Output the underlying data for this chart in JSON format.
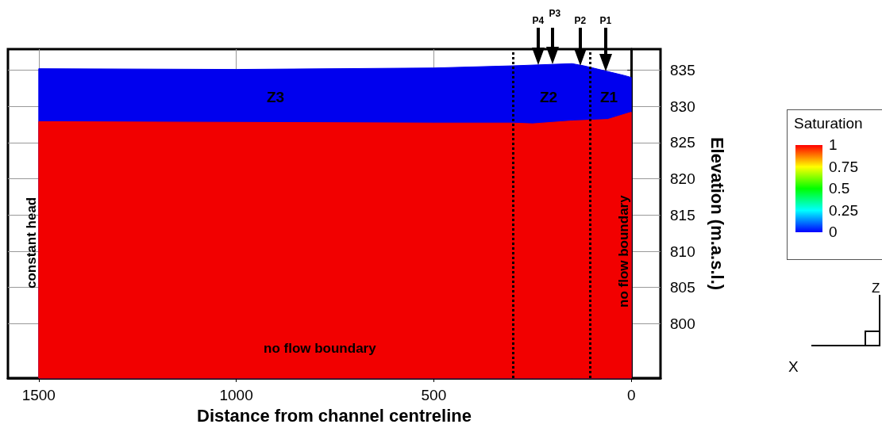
{
  "chart_data": {
    "type": "area",
    "xlabel": "Distance from channel centreline",
    "ylabel": "Elevation (m.a.s.l.)",
    "xlim": [
      1578,
      -74
    ],
    "xticks": [
      {
        "value": 1500,
        "label": "1500"
      },
      {
        "value": 1000,
        "label": "1000"
      },
      500,
      0
    ],
    "ylim": [
      792.5,
      837.9
    ],
    "yticks": [
      800,
      805,
      810,
      815,
      820,
      825,
      830,
      835
    ],
    "grid": true,
    "series": [
      {
        "color": "#0000ee",
        "x": [
          1500,
          1000,
          500,
          300,
          150,
          120,
          20,
          0
        ],
        "values": [
          835.2,
          835.1,
          835.3,
          835.6,
          835.9,
          835.6,
          834.3,
          834.0
        ]
      },
      {
        "color": "#f20000",
        "x": [
          1500,
          1000,
          500,
          300,
          250,
          150,
          60,
          0
        ],
        "values": [
          827.9,
          827.8,
          827.7,
          827.7,
          827.6,
          828.0,
          828.2,
          829.2
        ]
      }
    ],
    "ref_lines": [
      {
        "axis": "x",
        "value": 300,
        "label": null,
        "color": "#000000",
        "line_style": "dotted"
      },
      {
        "axis": "x",
        "value": 105,
        "label": null,
        "color": "#000000",
        "line_style": "dotted"
      }
    ],
    "annotations": [
      "P4",
      "P3",
      "P2",
      "P1",
      "Z3",
      "Z2",
      "Z1",
      "constant head",
      "no flow boundary",
      "no flow boundary",
      "X",
      "Z"
    ],
    "clabel": "Saturation",
    "clim": [
      0,
      1
    ],
    "cticks": [
      0,
      0.25,
      0.5,
      0.75,
      1
    ]
  }
}
